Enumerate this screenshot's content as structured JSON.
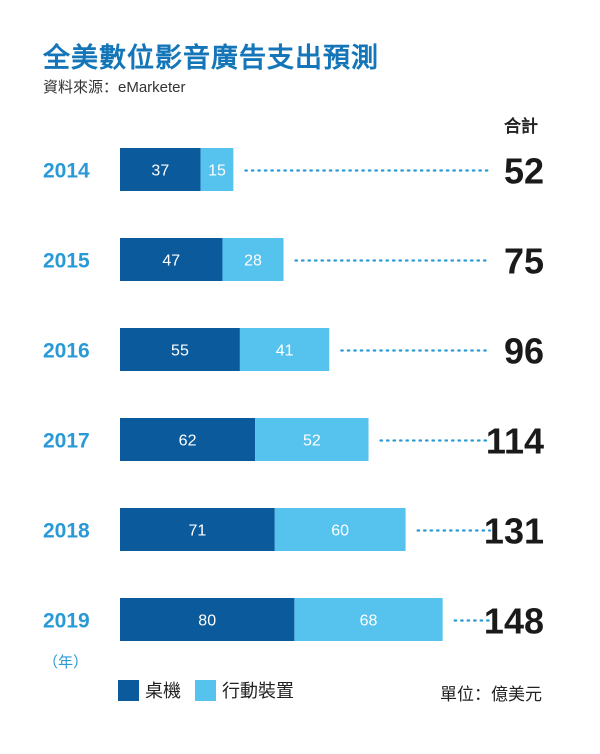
{
  "title": "全美數位影音廣告支出預測",
  "source": "資料來源：eMarketer",
  "total_header": "合計",
  "year_unit": "（年）",
  "unit": "單位：億美元",
  "colors": {
    "desktop": "#0a5a9c",
    "mobile": "#56c2ee",
    "year": "#2a9ad6",
    "dots": "#2a9ad6"
  },
  "legend": {
    "desktop": "桌機",
    "mobile": "行動裝置"
  },
  "chart_data": {
    "type": "bar",
    "orientation": "horizontal",
    "stacked": true,
    "title": "全美數位影音廣告支出預測",
    "categories": [
      "2014",
      "2015",
      "2016",
      "2017",
      "2018",
      "2019"
    ],
    "series": [
      {
        "name": "桌機",
        "values": [
          37,
          47,
          55,
          62,
          71,
          80
        ]
      },
      {
        "name": "行動裝置",
        "values": [
          15,
          28,
          41,
          52,
          60,
          68
        ]
      }
    ],
    "totals": [
      52,
      75,
      96,
      114,
      131,
      148
    ],
    "xlabel": "單位：億美元",
    "ylabel": "（年）"
  }
}
